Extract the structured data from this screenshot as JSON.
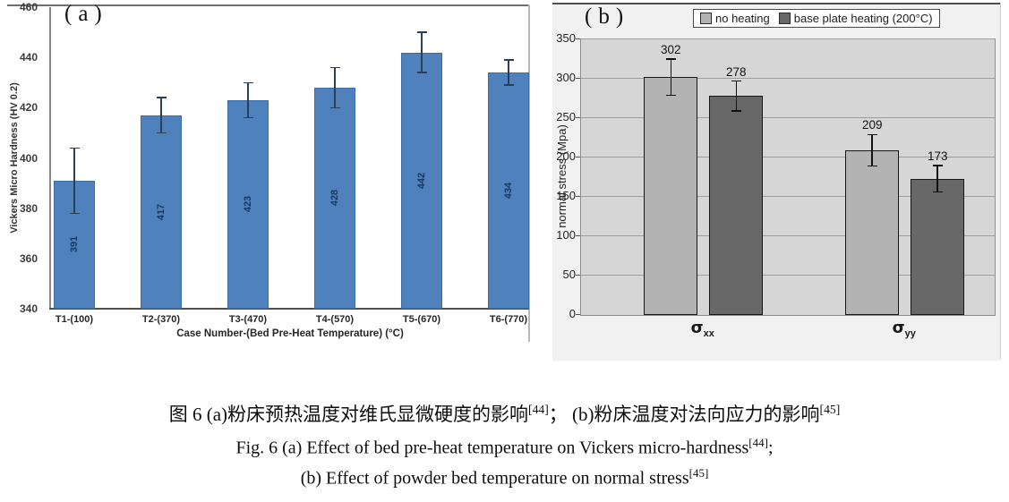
{
  "figure": {
    "panel_a_label": "(a)",
    "panel_b_label": "(b)"
  },
  "chart_data": [
    {
      "id": "vickers-hardness",
      "type": "bar",
      "categories": [
        "T1-(100)",
        "T2-(370)",
        "T3-(470)",
        "T4-(570)",
        "T5-(670)",
        "T6-(770)"
      ],
      "values": [
        391,
        417,
        423,
        428,
        442,
        434
      ],
      "errors": [
        13,
        7,
        7,
        8,
        8,
        5
      ],
      "value_labels": [
        "391",
        "417",
        "423",
        "428",
        "442",
        "434"
      ],
      "xlabel": "Case Number-(Bed Pre-Heat Temperature) (°C)",
      "ylabel": "Vickers Micro Hardness (HV 0.2)",
      "ylim": [
        340,
        460
      ],
      "ytick_step": 20,
      "grid": false,
      "legend": null,
      "bar_color": "#4f81bd",
      "error_color": "#2b3f57",
      "value_label_color": "#17375e"
    },
    {
      "id": "normal-stress",
      "type": "bar",
      "categories": [
        "σxx",
        "σyy"
      ],
      "category_parts": [
        {
          "base": "σ",
          "sub": "xx"
        },
        {
          "base": "σ",
          "sub": "yy"
        }
      ],
      "series": [
        {
          "name": "no heating",
          "values": [
            302,
            209
          ],
          "errors": [
            23,
            20
          ],
          "color": "#b3b3b3"
        },
        {
          "name": "base plate heating (200°C)",
          "values": [
            278,
            173
          ],
          "errors": [
            19,
            17
          ],
          "color": "#686868"
        }
      ],
      "xlabel": "",
      "ylabel": "normal stress (Mpa)",
      "ylim": [
        0,
        350
      ],
      "ytick_step": 50,
      "grid": true,
      "legend_position": "top",
      "plot_bg": "#d6d6d6",
      "grid_color": "#9c9c9c",
      "error_color": "#111111"
    }
  ],
  "caption": {
    "line1": {
      "p1": "图 6 (a)粉床预热温度对维氏显微硬度的影响",
      "s1": "[44]",
      "p2": "； (b)粉床温度对法向应力的影响",
      "s2": "[45]"
    },
    "line2": {
      "p1": "Fig. 6 (a) Effect of bed pre-heat temperature on Vickers micro-hardness",
      "s1": "[44]",
      "p2": ";"
    },
    "line3": {
      "p1": "(b) Effect of powder bed temperature on normal stress",
      "s1": "[45]"
    }
  },
  "colors": {
    "bar_blue": "#4f81bd",
    "bar_light_gray": "#b3b3b3",
    "bar_dark_gray": "#686868",
    "panel_b_background": "#f1f1f1",
    "plot_b_background": "#d6d6d6",
    "gridline": "#9c9c9c",
    "hardness_value_text": "#17375e"
  }
}
